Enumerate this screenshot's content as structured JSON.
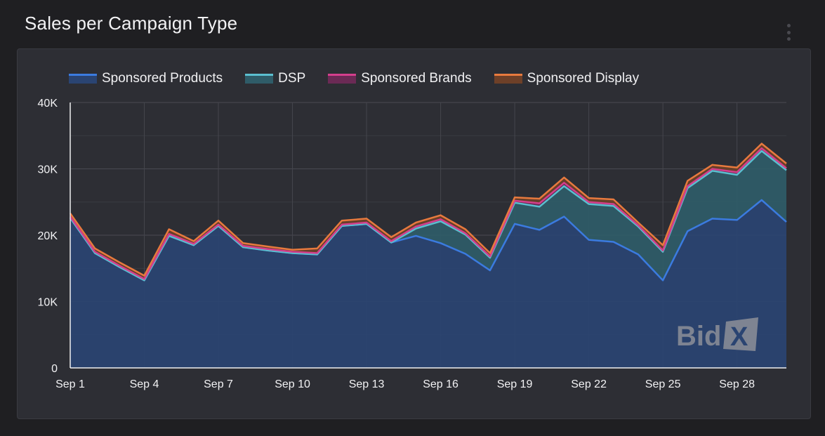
{
  "header": {
    "title": "Sales per Campaign Type",
    "menu_icon": "more-vertical-icon"
  },
  "watermark": {
    "text": "BidX"
  },
  "chart_data": {
    "type": "area",
    "stacked": true,
    "title": "Sales per Campaign Type",
    "xlabel": "",
    "ylabel": "",
    "ylim": [
      0,
      40000
    ],
    "y_ticks": [
      0,
      10000,
      20000,
      30000,
      40000
    ],
    "y_tick_labels": [
      "0",
      "10K",
      "20K",
      "30K",
      "40K"
    ],
    "x": [
      "Sep 1",
      "Sep 2",
      "Sep 3",
      "Sep 4",
      "Sep 5",
      "Sep 6",
      "Sep 7",
      "Sep 8",
      "Sep 9",
      "Sep 10",
      "Sep 11",
      "Sep 12",
      "Sep 13",
      "Sep 14",
      "Sep 15",
      "Sep 16",
      "Sep 17",
      "Sep 18",
      "Sep 19",
      "Sep 20",
      "Sep 21",
      "Sep 22",
      "Sep 23",
      "Sep 24",
      "Sep 25",
      "Sep 26",
      "Sep 27",
      "Sep 28",
      "Sep 29",
      "Sep 30"
    ],
    "x_tick_labels": [
      "Sep 1",
      "Sep 4",
      "Sep 7",
      "Sep 10",
      "Sep 13",
      "Sep 16",
      "Sep 19",
      "Sep 22",
      "Sep 25",
      "Sep 28"
    ],
    "x_tick_indices": [
      0,
      3,
      6,
      9,
      12,
      15,
      18,
      21,
      24,
      27
    ],
    "grid": true,
    "legend_position": "top-left",
    "series": [
      {
        "name": "Sponsored Products",
        "color": "#3b7be0",
        "fill": "#2a4472",
        "values": [
          22600,
          17300,
          15200,
          13200,
          19900,
          18500,
          21400,
          18200,
          17700,
          17300,
          17100,
          21400,
          21700,
          18900,
          19900,
          18800,
          17200,
          14700,
          21700,
          20800,
          22800,
          19300,
          19000,
          17100,
          13200,
          20600,
          22500,
          22300,
          25300,
          22000
        ]
      },
      {
        "name": "DSP",
        "color": "#5bbfd0",
        "fill": "#2f5c68",
        "values": [
          0,
          0,
          0,
          0,
          0,
          0,
          0,
          0,
          0,
          0,
          0,
          0,
          0,
          0,
          1100,
          3300,
          2900,
          1900,
          3200,
          3500,
          4600,
          5400,
          5400,
          4200,
          4300,
          6500,
          7200,
          6800,
          7400,
          7800
        ]
      },
      {
        "name": "Sponsored Brands",
        "color": "#d43f8d",
        "fill": "#6b2a55",
        "values": [
          200,
          200,
          200,
          200,
          300,
          200,
          200,
          200,
          200,
          200,
          200,
          200,
          200,
          200,
          300,
          300,
          200,
          200,
          300,
          500,
          500,
          300,
          300,
          200,
          200,
          300,
          300,
          400,
          400,
          300
        ]
      },
      {
        "name": "Sponsored Display",
        "color": "#e87a3e",
        "fill": "#6e4028",
        "values": [
          500,
          500,
          500,
          500,
          700,
          400,
          600,
          400,
          400,
          300,
          700,
          600,
          600,
          600,
          600,
          600,
          600,
          500,
          500,
          700,
          800,
          600,
          700,
          400,
          800,
          800,
          600,
          700,
          700,
          700
        ]
      }
    ]
  }
}
